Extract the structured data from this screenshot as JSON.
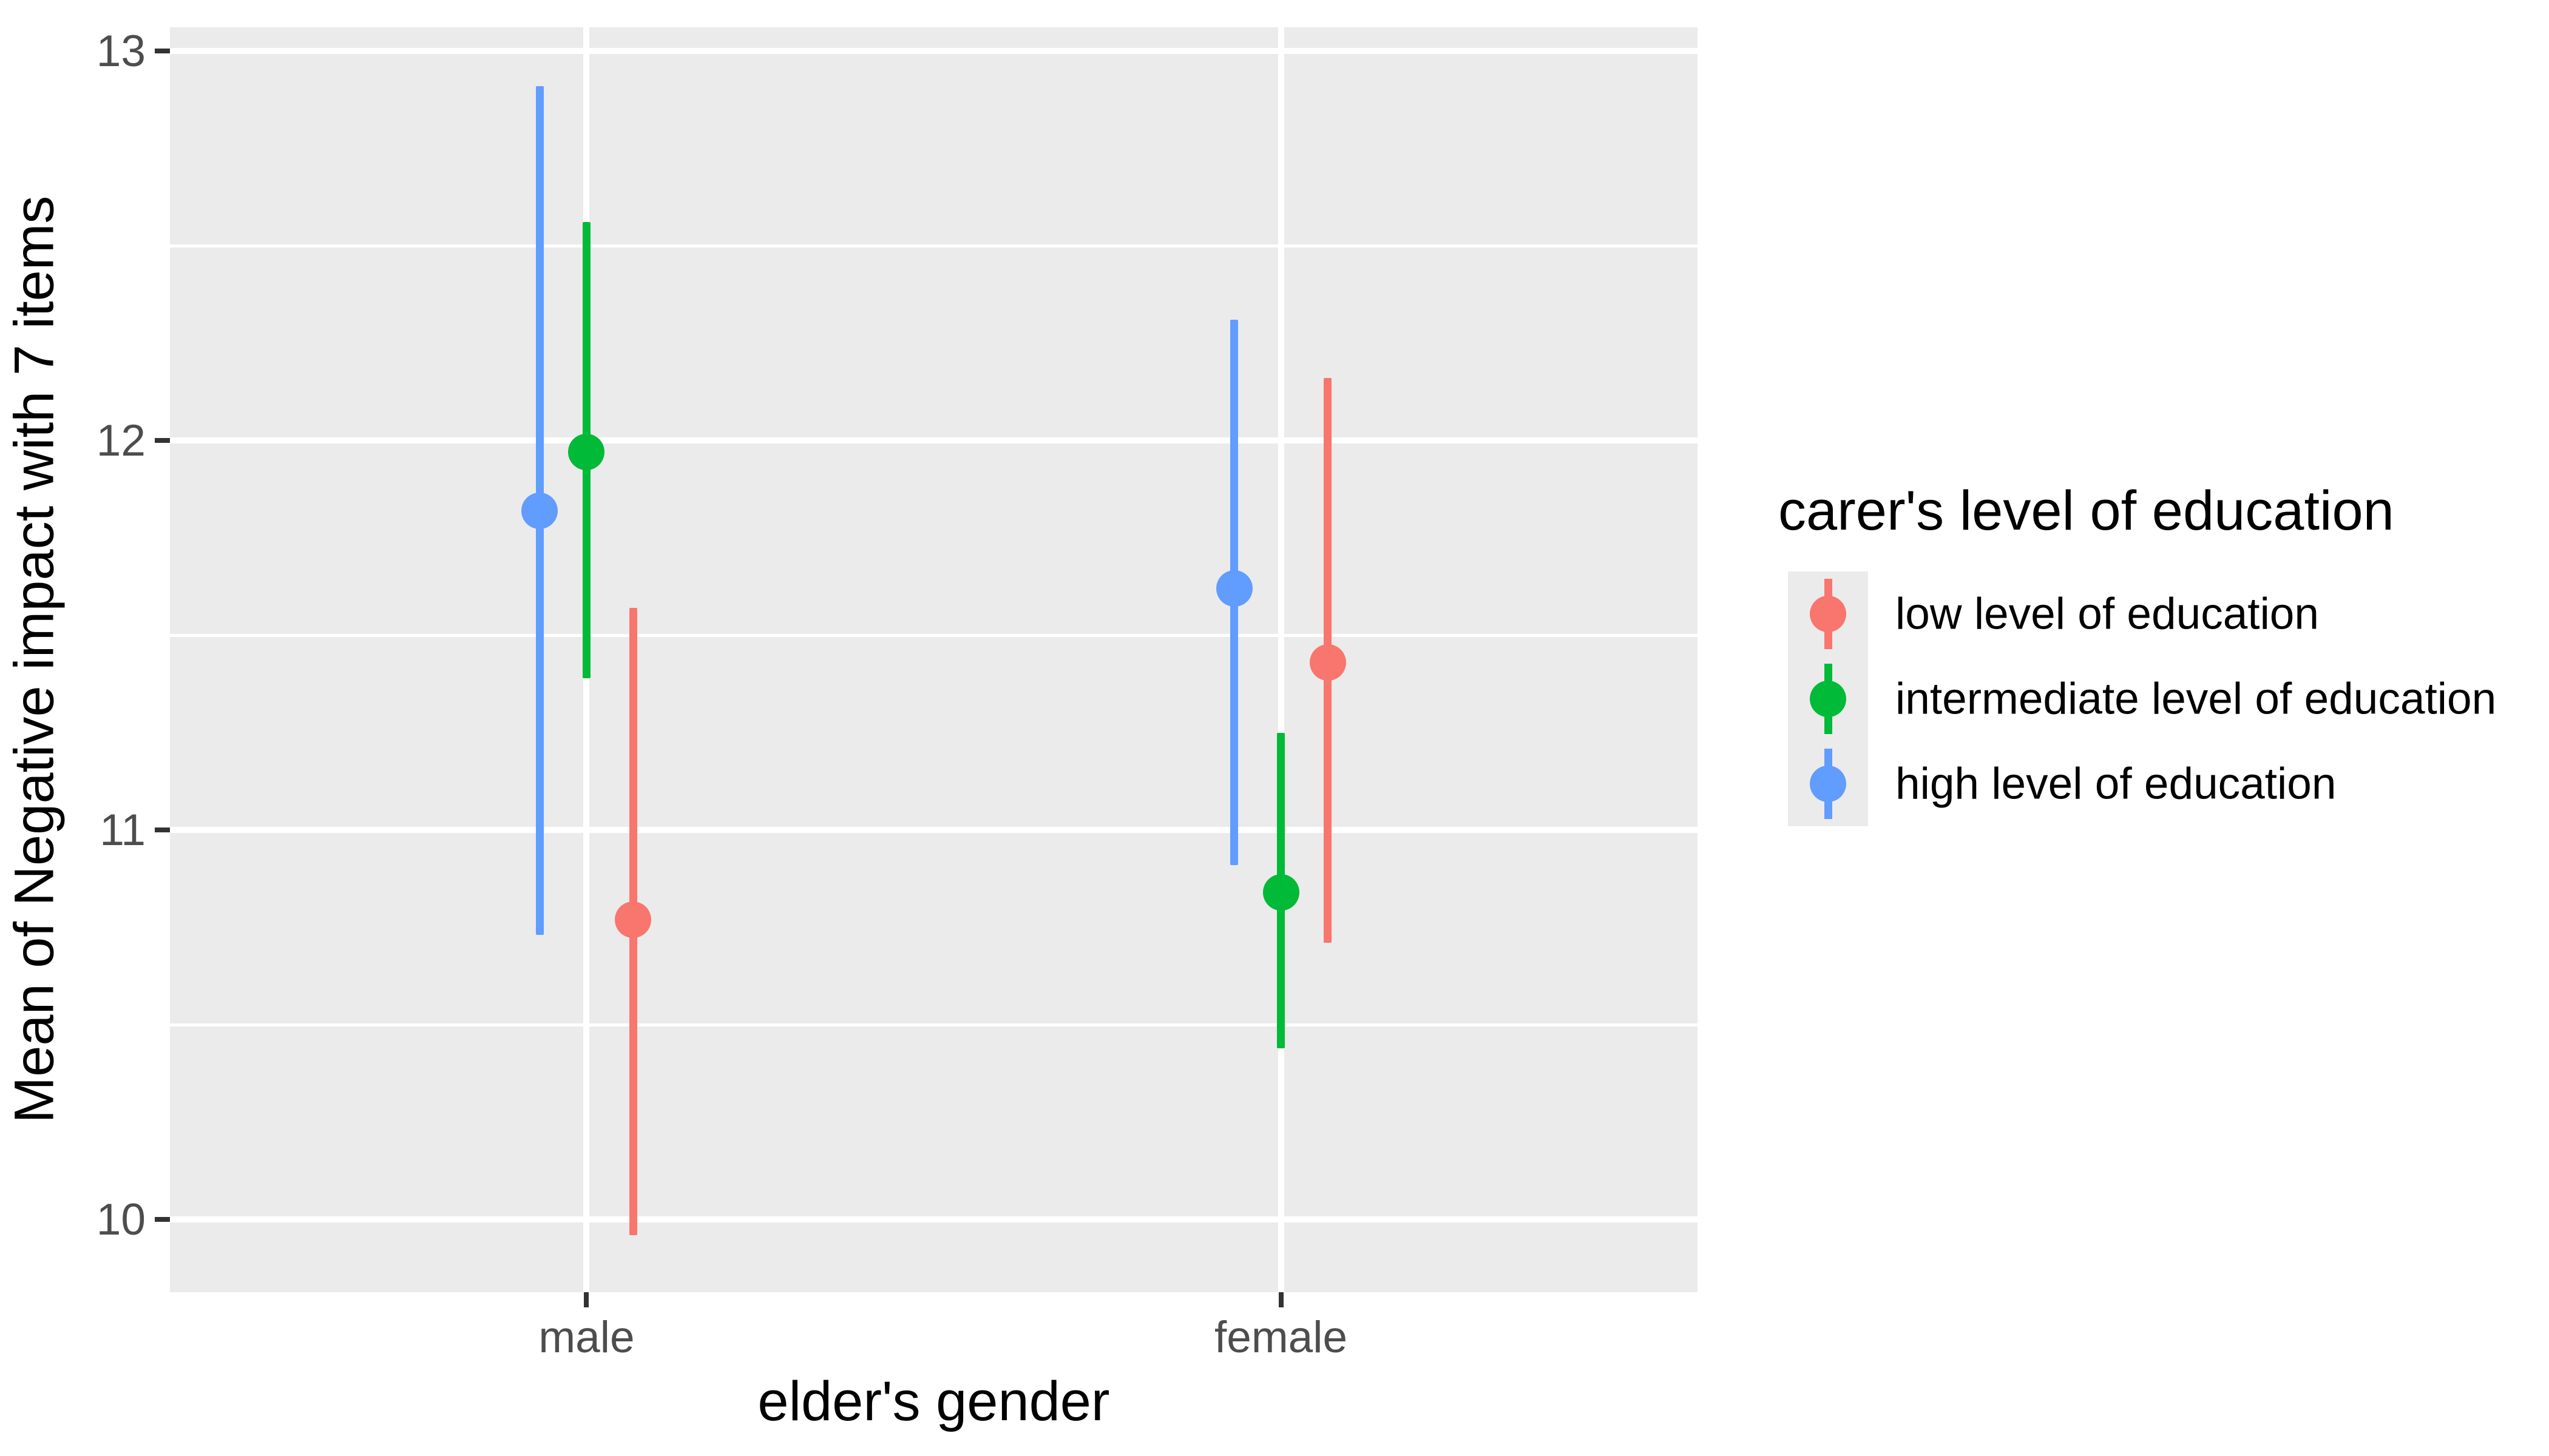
{
  "chart_data": {
    "type": "pointrange",
    "title": "",
    "xlabel": "elder's gender",
    "ylabel": "Mean of Negative impact with 7 items",
    "categories": [
      "male",
      "female"
    ],
    "y_ticks": [
      13,
      12,
      11,
      10
    ],
    "y_minor_ticks": [
      12.5,
      11.5,
      10.5
    ],
    "ylim": [
      9.81,
      13.06
    ],
    "grid": "on",
    "legend_position": "right",
    "legend": {
      "title": "carer's level of education",
      "items": [
        {
          "label": "low level of education",
          "color": "#F8766D"
        },
        {
          "label": "intermediate level of education",
          "color": "#00BA38"
        },
        {
          "label": "high level of education",
          "color": "#619CFF"
        }
      ]
    },
    "series": [
      {
        "name": "high level of education",
        "color": "#619CFF",
        "dodge": -1,
        "points": [
          {
            "category": "male",
            "mean": 11.82,
            "lower": 10.73,
            "upper": 12.91
          },
          {
            "category": "female",
            "mean": 11.62,
            "lower": 10.91,
            "upper": 12.31
          }
        ]
      },
      {
        "name": "intermediate level of education",
        "color": "#00BA38",
        "dodge": 0,
        "points": [
          {
            "category": "male",
            "mean": 11.97,
            "lower": 11.39,
            "upper": 12.56
          },
          {
            "category": "female",
            "mean": 10.84,
            "lower": 10.44,
            "upper": 11.25
          }
        ]
      },
      {
        "name": "low level of education",
        "color": "#F8766D",
        "dodge": 1,
        "points": [
          {
            "category": "male",
            "mean": 10.77,
            "lower": 9.96,
            "upper": 11.57
          },
          {
            "category": "female",
            "mean": 11.43,
            "lower": 10.71,
            "upper": 12.16
          }
        ]
      }
    ],
    "style_colors": {
      "panel_background": "#EBEBEB",
      "gridline": "#FFFFFF",
      "tick_label": "#4D4D4D",
      "axis_title": "#000000",
      "tick_mark": "#333333"
    }
  }
}
